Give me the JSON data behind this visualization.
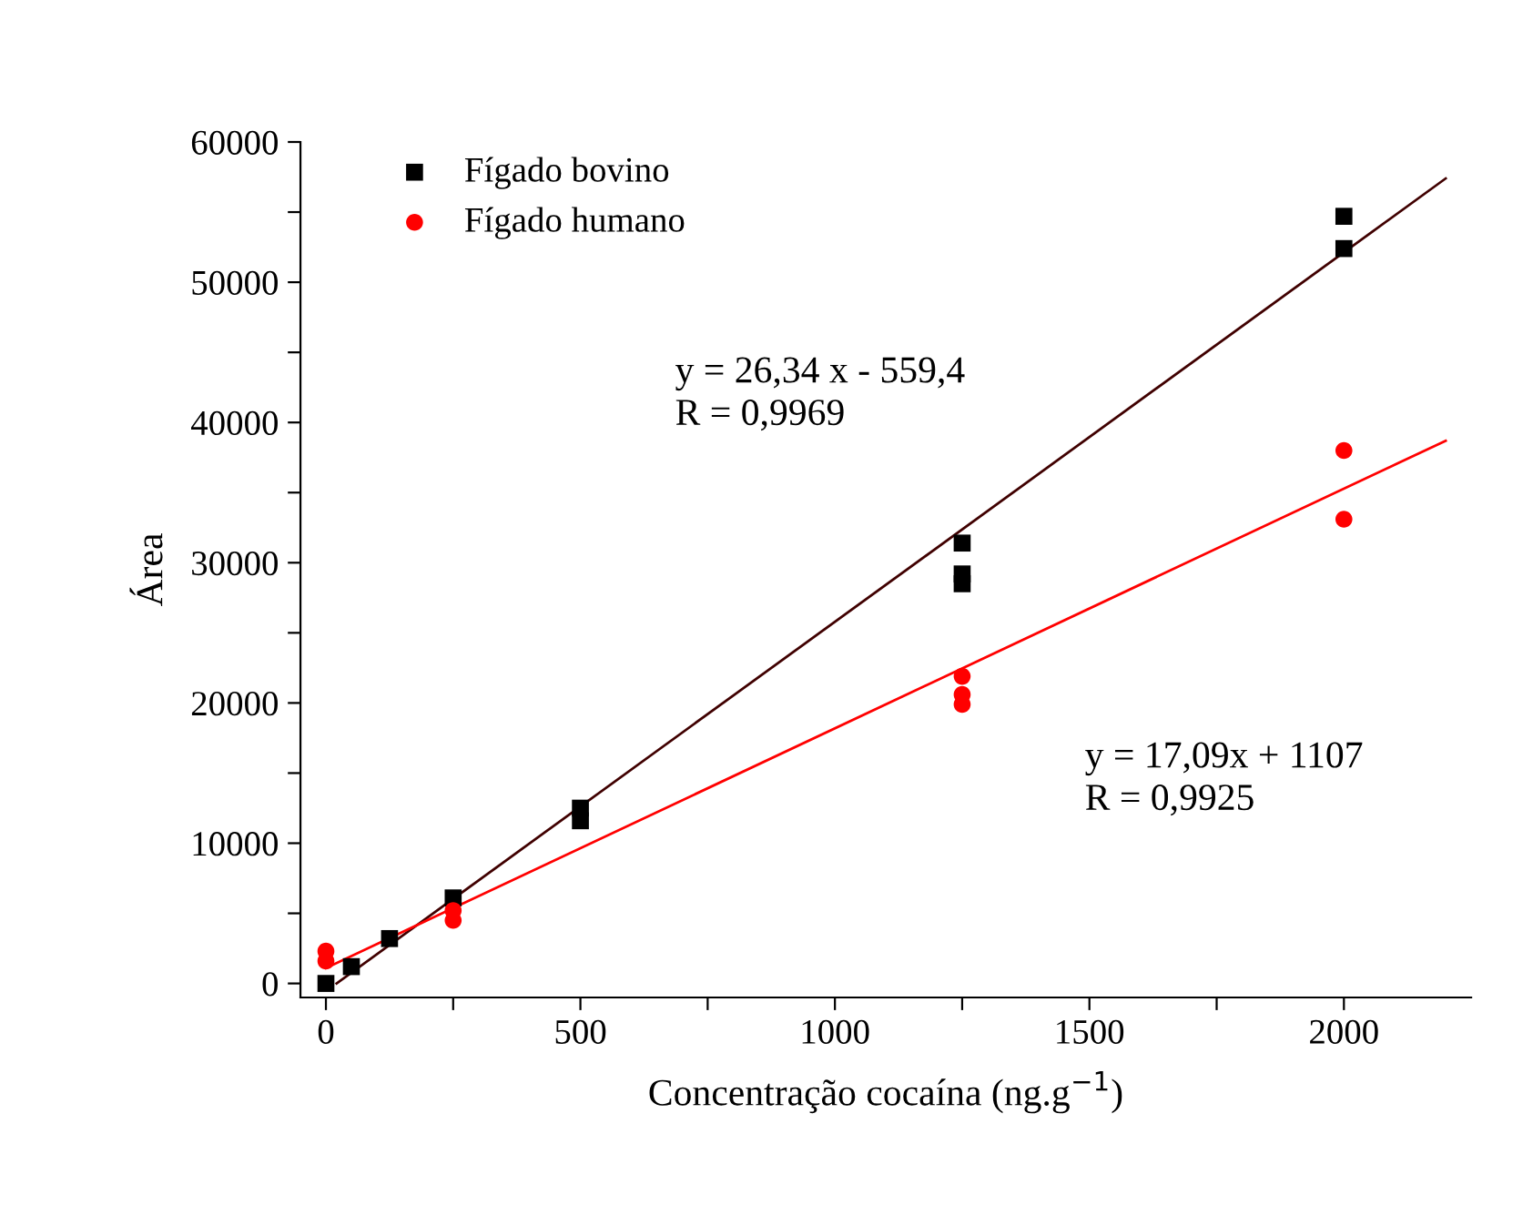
{
  "chart_data": {
    "type": "scatter",
    "xlabel": "Concentração cocaína (ng.g$^{−1}$)",
    "ylabel": "Área",
    "xlim": [
      -50,
      2250
    ],
    "ylim": [
      -1000,
      60000
    ],
    "xticks": [
      0,
      {
        "value": 250,
        "label": null
      },
      500,
      {
        "value": 750,
        "label": null
      },
      1000,
      {
        "value": 1250,
        "label": null
      },
      1500,
      {
        "value": 1750,
        "label": null
      },
      2000
    ],
    "yticks": [
      0,
      {
        "value": 5000,
        "label": null
      },
      10000,
      {
        "value": 15000,
        "label": null
      },
      20000,
      {
        "value": 25000,
        "label": null
      },
      30000,
      {
        "value": 35000,
        "label": null
      },
      40000,
      {
        "value": 45000,
        "label": null
      },
      50000,
      {
        "value": 55000,
        "label": null
      },
      60000
    ],
    "grid": false,
    "legend": "top left",
    "series": [
      {
        "name": "Fígado bovino",
        "color": "#000000",
        "marker": "square",
        "x": [
          0,
          50,
          125,
          250,
          500,
          500,
          1250,
          1250,
          1250,
          2000,
          2000
        ],
        "values": [
          0,
          1200,
          3200,
          6100,
          12500,
          11600,
          31400,
          29200,
          28500,
          54700,
          52400
        ]
      },
      {
        "name": "Fígado humano",
        "color": "#ff0000",
        "marker": "circle",
        "x": [
          0,
          0,
          250,
          250,
          1250,
          1250,
          1250,
          2000,
          2000
        ],
        "values": [
          2300,
          1600,
          5200,
          4500,
          21900,
          20600,
          19900,
          38000,
          33100
        ]
      },
      {
        "type": "line",
        "color": "#400000",
        "x": [
          21,
          2200
        ],
        "values": [
          0,
          57400
        ]
      },
      {
        "type": "line",
        "color": "#ff0000",
        "x": [
          0,
          2200
        ],
        "values": [
          1100,
          38700
        ]
      }
    ],
    "annotations": [
      "y = 26,34 x - 559,4\nR = 0,9969",
      "y = 17,09x + 1107\nR = 0,9925"
    ]
  }
}
